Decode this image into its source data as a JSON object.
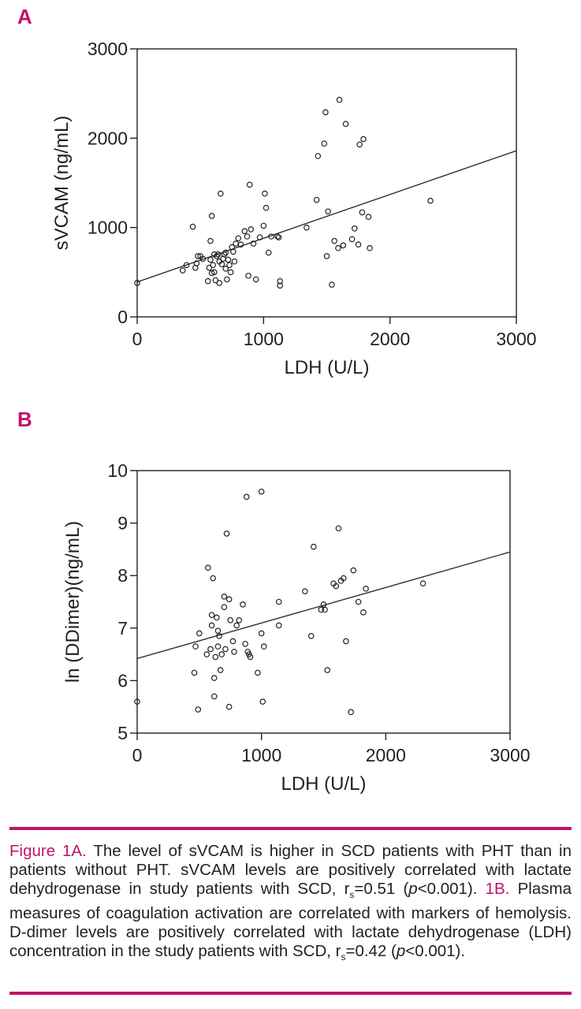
{
  "chart_data": [
    {
      "panel": "A",
      "type": "scatter",
      "xlabel": "LDH (U/L)",
      "ylabel": "sVCAM (ng/mL)",
      "xlim": [
        0,
        3000
      ],
      "ylim": [
        0,
        3000
      ],
      "xticks": [
        "0",
        "1000",
        "2000",
        "3000"
      ],
      "yticks": [
        "0",
        "1000",
        "2000",
        "3000"
      ],
      "grid": false,
      "fit_line": {
        "x": [
          0,
          3000
        ],
        "y": [
          390,
          1860
        ]
      },
      "points": {
        "x": [
          0,
          360,
          390,
          440,
          460,
          470,
          480,
          500,
          520,
          560,
          570,
          580,
          580,
          590,
          590,
          600,
          610,
          610,
          620,
          630,
          640,
          650,
          650,
          660,
          670,
          680,
          690,
          700,
          700,
          710,
          720,
          730,
          740,
          750,
          760,
          770,
          780,
          800,
          820,
          850,
          870,
          880,
          890,
          900,
          920,
          940,
          970,
          1000,
          1010,
          1020,
          1040,
          1060,
          1110,
          1120,
          1130,
          1130,
          1340,
          1420,
          1430,
          1480,
          1490,
          1500,
          1510,
          1540,
          1560,
          1590,
          1600,
          1630,
          1650,
          1700,
          1720,
          1750,
          1760,
          1780,
          1790,
          1830,
          1840,
          2320
        ],
        "y": [
          380,
          520,
          580,
          1010,
          550,
          600,
          680,
          680,
          650,
          400,
          550,
          640,
          850,
          1130,
          490,
          580,
          700,
          500,
          410,
          680,
          700,
          380,
          620,
          1380,
          590,
          650,
          700,
          720,
          540,
          420,
          640,
          580,
          500,
          780,
          730,
          620,
          820,
          880,
          810,
          960,
          900,
          460,
          1480,
          980,
          820,
          420,
          890,
          1020,
          1380,
          1220,
          720,
          900,
          900,
          890,
          400,
          350,
          1000,
          1310,
          1800,
          1940,
          2290,
          680,
          1180,
          360,
          850,
          770,
          2430,
          800,
          2160,
          870,
          990,
          810,
          1930,
          1170,
          1990,
          1120,
          770,
          1300
        ]
      }
    },
    {
      "panel": "B",
      "type": "scatter",
      "xlabel": "LDH (U/L)",
      "ylabel": "ln (DDimer)(ng/mL)",
      "xlim": [
        0,
        3000
      ],
      "ylim": [
        5,
        10
      ],
      "xticks": [
        "0",
        "1000",
        "2000",
        "3000"
      ],
      "yticks": [
        "5",
        "6",
        "7",
        "8",
        "9",
        "10"
      ],
      "grid": false,
      "fit_line": {
        "x": [
          0,
          3000
        ],
        "y": [
          6.42,
          8.45
        ]
      },
      "points": {
        "x": [
          0,
          460,
          470,
          490,
          500,
          560,
          570,
          590,
          600,
          600,
          610,
          620,
          620,
          630,
          640,
          650,
          650,
          660,
          670,
          680,
          700,
          700,
          710,
          720,
          740,
          740,
          750,
          770,
          780,
          800,
          820,
          850,
          870,
          880,
          890,
          900,
          910,
          970,
          1000,
          1000,
          1010,
          1020,
          1140,
          1140,
          1350,
          1400,
          1420,
          1480,
          1500,
          1510,
          1530,
          1580,
          1600,
          1620,
          1640,
          1660,
          1680,
          1720,
          1740,
          1780,
          1820,
          1840,
          2300
        ],
        "y": [
          5.6,
          6.15,
          6.65,
          5.45,
          6.9,
          6.5,
          8.15,
          6.6,
          7.05,
          7.25,
          7.95,
          6.05,
          5.7,
          6.45,
          7.2,
          6.65,
          6.95,
          6.85,
          6.2,
          6.5,
          7.6,
          7.4,
          6.6,
          8.8,
          5.5,
          7.55,
          7.15,
          6.75,
          6.55,
          7.05,
          7.15,
          7.45,
          6.7,
          9.5,
          6.55,
          6.5,
          6.45,
          6.15,
          9.6,
          6.9,
          5.6,
          6.65,
          7.5,
          7.05,
          7.7,
          6.85,
          8.55,
          7.35,
          7.45,
          7.35,
          6.2,
          7.85,
          7.8,
          8.9,
          7.9,
          7.95,
          6.75,
          5.4,
          8.1,
          7.5,
          7.3,
          7.75,
          7.85
        ]
      }
    }
  ],
  "panel_letters": {
    "a": "A",
    "b": "B"
  },
  "caption": {
    "label_a": "Figure 1A.",
    "text_a1": " The level of sVCAM is higher in SCD patients with PHT than in patients without PHT. sVCAM levels are positively correlated with lactate dehydrogenase in study patients with SCD, r",
    "sub_s1": "s",
    "text_a2": "=0.51 (",
    "p1": "p",
    "text_a3": "<0.001). ",
    "label_b": "1B.",
    "text_b1": " Plasma measures of coagulation activation are correlated with markers of hemolysis. D-dimer levels are positively correlated with lactate dehydrogenase (LDH) concentration in the study patients with SCD, r",
    "sub_s2": "s",
    "text_b2": "=0.42 (",
    "p2": "p",
    "text_b3": "<0.001)."
  },
  "colors": {
    "accent": "#c0136b",
    "ink": "#222222"
  }
}
